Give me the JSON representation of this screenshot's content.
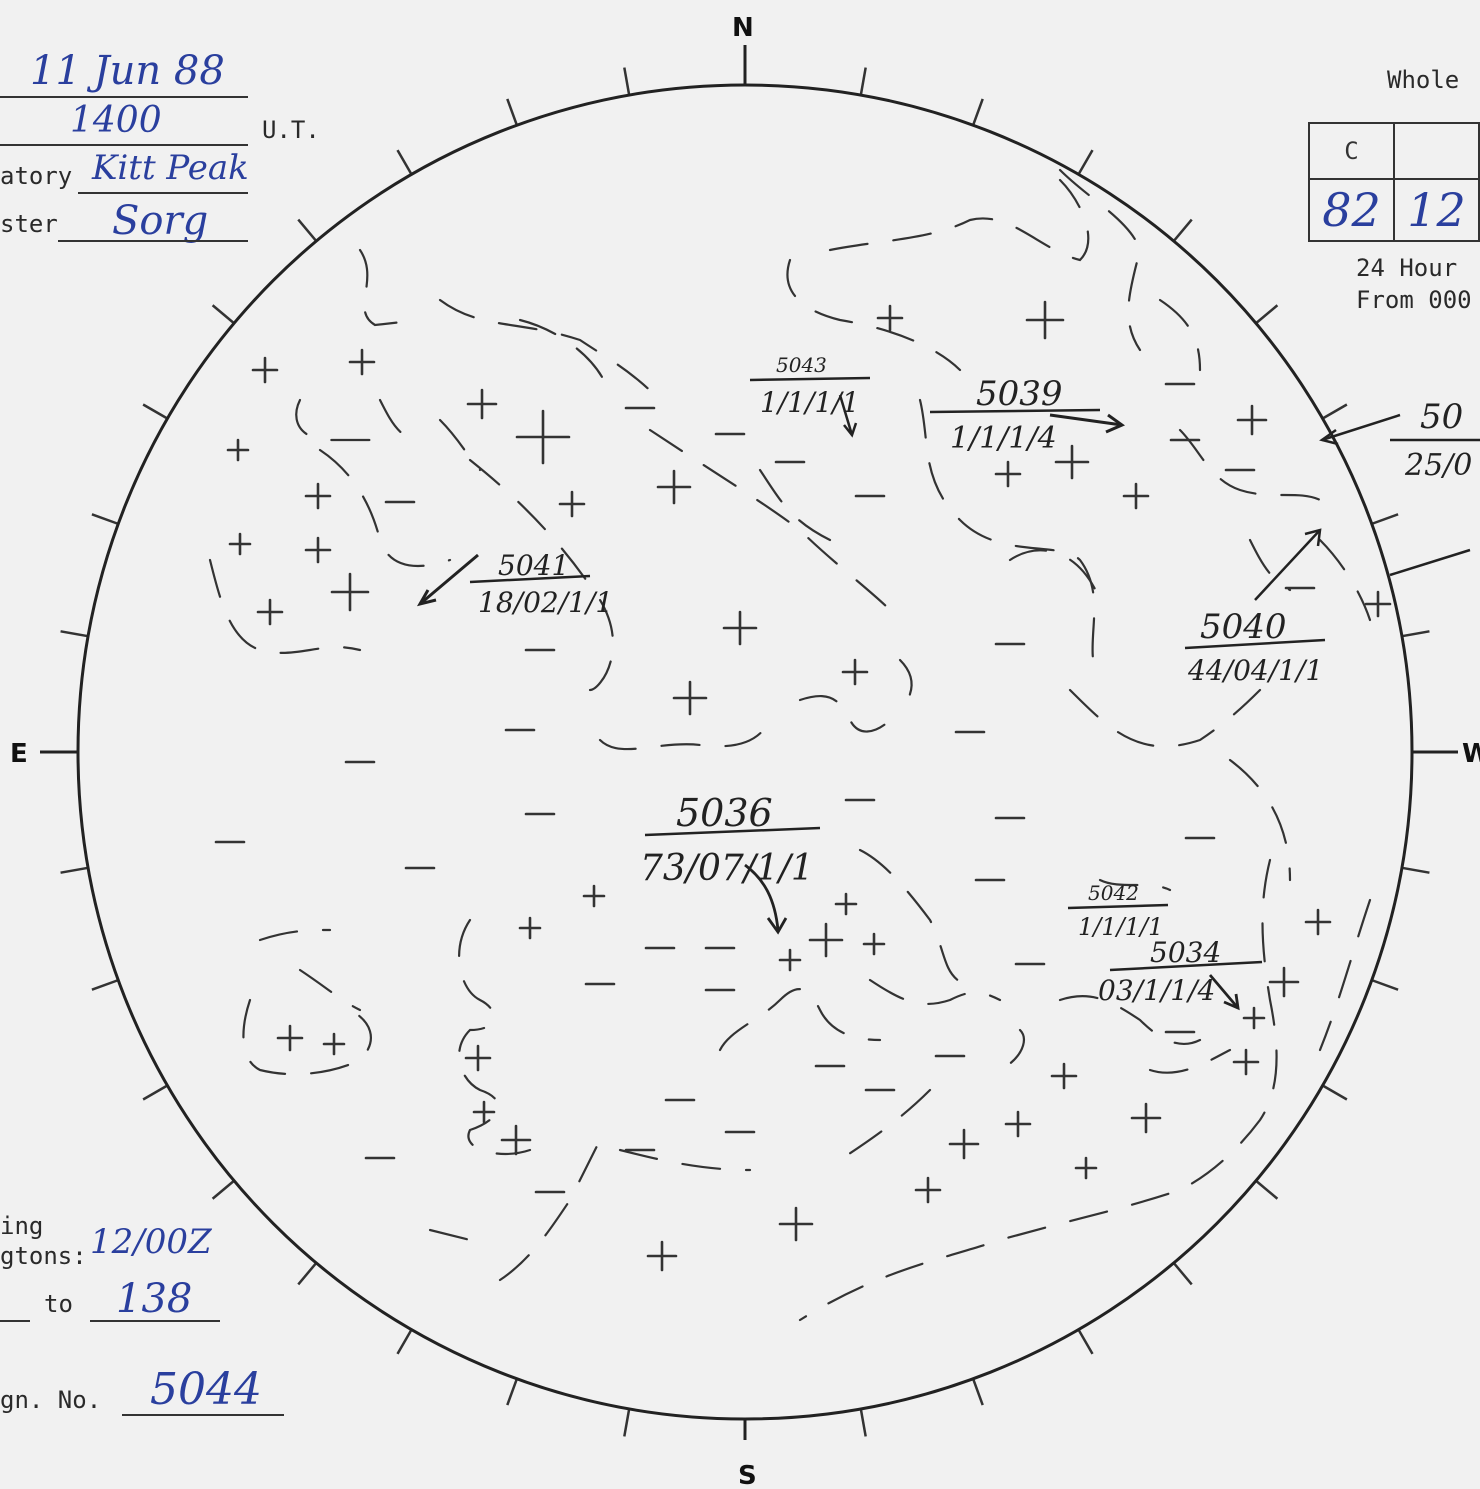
{
  "header": {
    "date": "11 Jun 88",
    "time": "1400",
    "time_unit": "U.T.",
    "observatory_label": "atory",
    "observatory": "Kitt Peak",
    "forecaster_label": "ster",
    "forecaster": "Sorg"
  },
  "right_panel": {
    "whole_label": "Whole",
    "table_header": [
      "C",
      ""
    ],
    "table_values": [
      "82",
      "12"
    ],
    "note_line1": "24 Hour",
    "note_line2": "From 000"
  },
  "compass": {
    "north": "N",
    "south": "S",
    "east": "E",
    "west": "W"
  },
  "regions": [
    {
      "number": "5043",
      "code": "1/1/1/1"
    },
    {
      "number": "5039",
      "code": "1/1/1/4"
    },
    {
      "number": "50",
      "code": "25/0"
    },
    {
      "number": "5041",
      "code": "18/02/1/1"
    },
    {
      "number": "5040",
      "code": "44/04/1/1"
    },
    {
      "number": "5036",
      "code": "73/07/1/1"
    },
    {
      "number": "5042",
      "code": "1/1/1/1"
    },
    {
      "number": "5034",
      "code": "03/1/1/4"
    }
  ],
  "footer": {
    "ing_label": "ing",
    "gtons_label": "gtons:",
    "gtons_value": "12/00Z",
    "to_label": "to",
    "to_value": "138",
    "assign_label": "gn. No.",
    "assign_value": "5044"
  }
}
